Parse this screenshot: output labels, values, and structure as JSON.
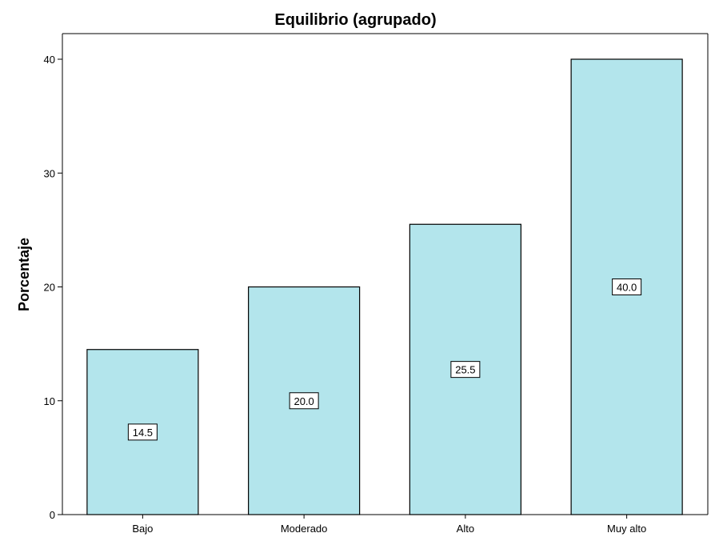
{
  "chart_data": {
    "type": "bar",
    "title": "Equilibrio (agrupado)",
    "xlabel": "",
    "ylabel": "Porcentaje",
    "categories": [
      "Bajo",
      "Moderado",
      "Alto",
      "Muy alto"
    ],
    "values": [
      14.5,
      20.0,
      25.5,
      40.0
    ],
    "data_labels": [
      "14.5",
      "20.0",
      "25.5",
      "40.0"
    ],
    "ylim": [
      0,
      40
    ],
    "yticks": [
      0,
      10,
      20,
      30,
      40
    ],
    "ytick_labels": [
      "0",
      "10",
      "20",
      "30",
      "40"
    ],
    "bar_color": "#b3e5ec",
    "grid": false,
    "legend": "none"
  }
}
